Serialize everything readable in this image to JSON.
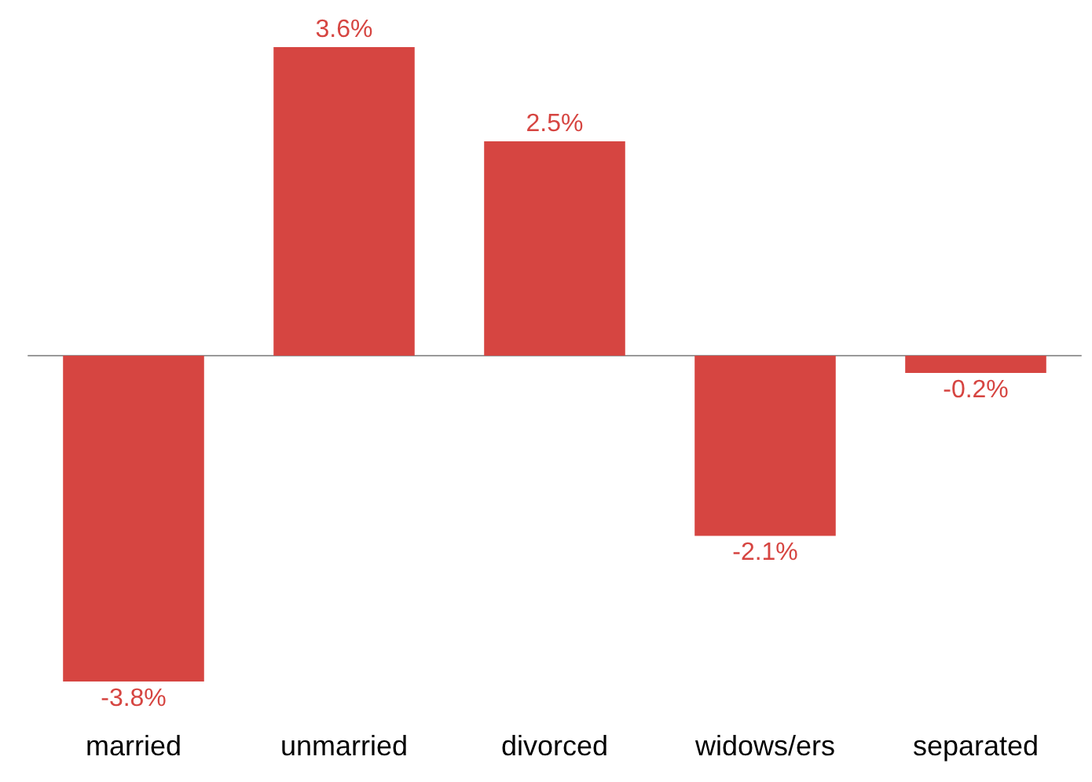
{
  "chart_data": {
    "type": "bar",
    "categories": [
      "married",
      "unmarried",
      "divorced",
      "widows/ers",
      "separated"
    ],
    "values": [
      -3.8,
      3.6,
      2.5,
      -2.1,
      -0.2
    ],
    "value_labels": [
      "-3.8%",
      "3.6%",
      "2.5%",
      "-2.1%",
      "-0.2%"
    ],
    "color": "#d64541",
    "tick_labels": "x"
  }
}
